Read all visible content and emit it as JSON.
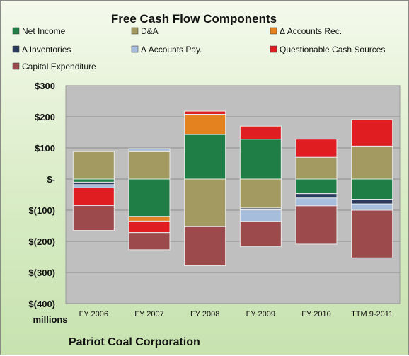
{
  "chart_data": {
    "type": "bar",
    "stacked": true,
    "title": "Free Cash Flow Components",
    "units_label": "millions",
    "footer": "Patriot Coal Corporation",
    "categories": [
      "FY 2006",
      "FY 2007",
      "FY 2008",
      "FY 2009",
      "FY 2010",
      "TTM 9-2011"
    ],
    "y_ticks": [
      "$300",
      "$200",
      "$100",
      "$-",
      "$(100)",
      "$(200)",
      "$(300)",
      "$(400)"
    ],
    "ylim": [
      -400,
      300
    ],
    "legend_position": "top",
    "series": [
      {
        "name": "Net Income",
        "color": "#1f7d46",
        "values": [
          -10,
          -120,
          143,
          128,
          -47,
          -65
        ]
      },
      {
        "name": "D&A",
        "color": "#a39a62",
        "values": [
          88,
          88,
          -153,
          -93,
          70,
          106
        ]
      },
      {
        "name": "Δ Accounts Rec.",
        "color": "#e3821f",
        "values": [
          0,
          -15,
          65,
          0,
          0,
          0
        ]
      },
      {
        "name": "Δ Inventories",
        "color": "#2a3b5b",
        "values": [
          -8,
          2,
          0,
          -6,
          -14,
          -15
        ]
      },
      {
        "name": "Δ Accounts Pay.",
        "color": "#a7bddc",
        "values": [
          -10,
          8,
          0,
          -37,
          -25,
          -20
        ]
      },
      {
        "name": "Questionable Cash Sources",
        "color": "#e01e22",
        "values": [
          -57,
          -37,
          10,
          42,
          58,
          85
        ]
      },
      {
        "name": "Capital Expenditure",
        "color": "#9c4a4c",
        "values": [
          -80,
          -55,
          -125,
          -80,
          -123,
          -153
        ]
      }
    ]
  }
}
